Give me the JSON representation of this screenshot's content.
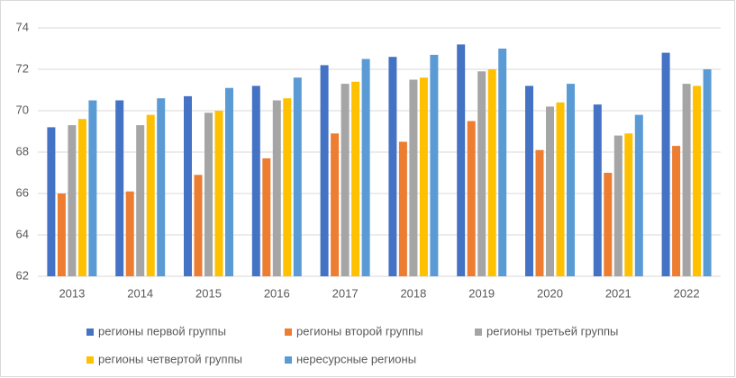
{
  "chart_data": {
    "type": "bar",
    "categories": [
      "2013",
      "2014",
      "2015",
      "2016",
      "2017",
      "2018",
      "2019",
      "2020",
      "2021",
      "2022"
    ],
    "series": [
      {
        "name": "регионы первой группы",
        "color": "#4472c4",
        "values": [
          69.2,
          70.5,
          70.7,
          71.2,
          72.2,
          72.6,
          73.2,
          71.2,
          70.3,
          72.8
        ]
      },
      {
        "name": "регионы второй группы",
        "color": "#ed7d31",
        "values": [
          66.0,
          66.1,
          66.9,
          67.7,
          68.9,
          68.5,
          69.5,
          68.1,
          67.0,
          68.3
        ]
      },
      {
        "name": "регионы третьей группы",
        "color": "#a5a5a5",
        "values": [
          69.3,
          69.3,
          69.9,
          70.5,
          71.3,
          71.5,
          71.9,
          70.2,
          68.8,
          71.3
        ]
      },
      {
        "name": "регионы четвертой группы",
        "color": "#ffc000",
        "values": [
          69.6,
          69.8,
          70.0,
          70.6,
          71.4,
          71.6,
          72.0,
          70.4,
          68.9,
          71.2
        ]
      },
      {
        "name": "нересурсные регионы",
        "color": "#5b9bd5",
        "values": [
          70.5,
          70.6,
          71.1,
          71.6,
          72.5,
          72.7,
          73.0,
          71.3,
          69.8,
          72.0
        ]
      }
    ],
    "ylim": [
      62,
      74
    ],
    "yticks": [
      62,
      64,
      66,
      68,
      70,
      72,
      74
    ],
    "grid": true,
    "legend": "bottom"
  }
}
